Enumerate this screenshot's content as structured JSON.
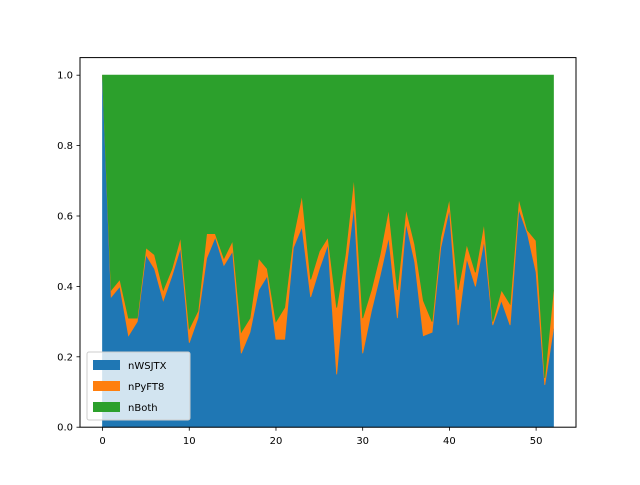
{
  "chart_data": {
    "type": "area",
    "stacked": true,
    "title": "",
    "xlabel": "",
    "ylabel": "",
    "xlim": [
      -2.6,
      54.6
    ],
    "ylim": [
      0.0,
      1.05
    ],
    "x_ticks": [
      0,
      10,
      20,
      30,
      40,
      50
    ],
    "y_ticks": [
      0.0,
      0.2,
      0.4,
      0.6,
      0.8,
      1.0
    ],
    "x_tick_labels": [
      "0",
      "10",
      "20",
      "30",
      "40",
      "50"
    ],
    "y_tick_labels": [
      "0.0",
      "0.2",
      "0.4",
      "0.6",
      "0.8",
      "1.0"
    ],
    "grid": false,
    "legend_position": "lower-left",
    "x": [
      0,
      1,
      2,
      3,
      4,
      5,
      6,
      7,
      8,
      9,
      10,
      11,
      12,
      13,
      14,
      15,
      16,
      17,
      18,
      19,
      20,
      21,
      22,
      23,
      24,
      25,
      26,
      27,
      28,
      29,
      30,
      31,
      32,
      33,
      34,
      35,
      36,
      37,
      38,
      39,
      40,
      41,
      42,
      43,
      44,
      45,
      46,
      47,
      48,
      49,
      50,
      51,
      52
    ],
    "series": [
      {
        "name": "nWSJTX",
        "color": "#1f77b4",
        "values": [
          1.0,
          0.37,
          0.4,
          0.26,
          0.3,
          0.49,
          0.45,
          0.36,
          0.43,
          0.51,
          0.24,
          0.31,
          0.48,
          0.54,
          0.46,
          0.5,
          0.21,
          0.27,
          0.39,
          0.43,
          0.25,
          0.25,
          0.51,
          0.57,
          0.37,
          0.45,
          0.52,
          0.15,
          0.43,
          0.63,
          0.21,
          0.33,
          0.43,
          0.54,
          0.31,
          0.58,
          0.47,
          0.26,
          0.27,
          0.51,
          0.62,
          0.29,
          0.48,
          0.4,
          0.53,
          0.29,
          0.36,
          0.29,
          0.62,
          0.55,
          0.44,
          0.12,
          0.28
        ]
      },
      {
        "name": "nPyFT8",
        "color": "#ff7f0e",
        "values": [
          0.0,
          0.02,
          0.02,
          0.05,
          0.01,
          0.02,
          0.04,
          0.03,
          0.02,
          0.03,
          0.04,
          0.02,
          0.07,
          0.01,
          0.02,
          0.03,
          0.06,
          0.04,
          0.09,
          0.02,
          0.05,
          0.09,
          0.03,
          0.09,
          0.05,
          0.05,
          0.02,
          0.19,
          0.06,
          0.08,
          0.1,
          0.06,
          0.06,
          0.08,
          0.08,
          0.04,
          0.05,
          0.1,
          0.03,
          0.03,
          0.03,
          0.1,
          0.04,
          0.04,
          0.05,
          0.01,
          0.03,
          0.06,
          0.03,
          0.01,
          0.09,
          0.02,
          0.11
        ]
      },
      {
        "name": "nBoth",
        "color": "#2ca02c",
        "values": [
          0.0,
          0.61,
          0.58,
          0.69,
          0.69,
          0.49,
          0.51,
          0.61,
          0.55,
          0.46,
          0.72,
          0.67,
          0.45,
          0.45,
          0.52,
          0.47,
          0.73,
          0.69,
          0.52,
          0.55,
          0.7,
          0.66,
          0.46,
          0.34,
          0.58,
          0.5,
          0.46,
          0.66,
          0.51,
          0.29,
          0.69,
          0.61,
          0.51,
          0.38,
          0.61,
          0.38,
          0.48,
          0.64,
          0.7,
          0.46,
          0.35,
          0.61,
          0.48,
          0.56,
          0.42,
          0.7,
          0.61,
          0.65,
          0.35,
          0.44,
          0.47,
          0.86,
          0.61
        ]
      }
    ]
  }
}
